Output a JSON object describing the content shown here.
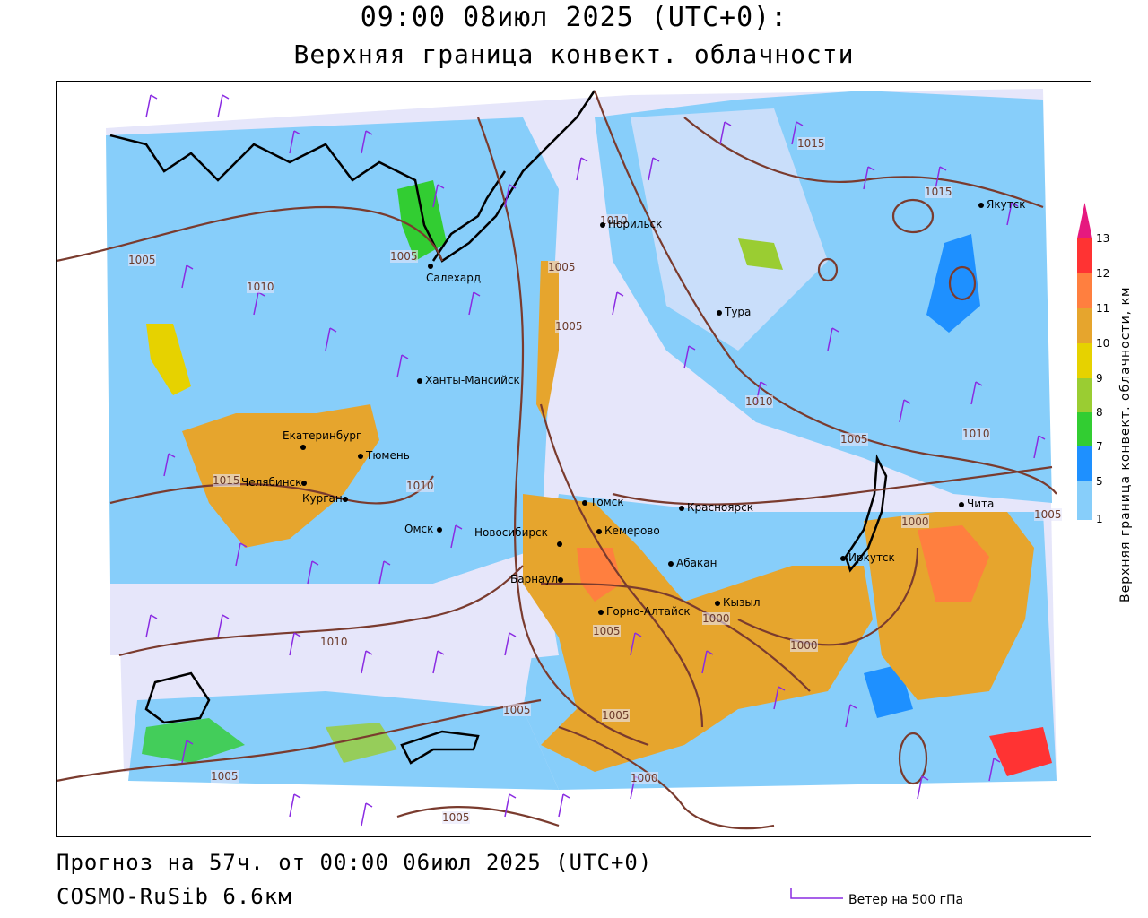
{
  "header": {
    "time": "09:00 08июл 2025 (UTC+0):",
    "title": "Верхняя граница конвект. облачности"
  },
  "footer": {
    "forecast": "Прогноз на 57ч. от 00:00 06июл 2025 (UTC+0)",
    "model": "COSMO-RuSib 6.6км",
    "wind_label": "Ветер на 500 гПа"
  },
  "legend": {
    "unit": "Верхняя граница конвект. облачности, км",
    "ticks": [
      "1",
      "5",
      "7",
      "8",
      "9",
      "10",
      "11",
      "12",
      "13"
    ],
    "colors": [
      "#e6e6fa",
      "#87cefa",
      "#1e90ff",
      "#32cd32",
      "#9acd32",
      "#e6d200",
      "#e6a52d",
      "#ff7f3f",
      "#ff3333",
      "#e6197f"
    ]
  },
  "cities": [
    {
      "name": "Салехард"
    },
    {
      "name": "Норильск"
    },
    {
      "name": "Тура"
    },
    {
      "name": "Якутск"
    },
    {
      "name": "Ханты-Мансийск"
    },
    {
      "name": "Екатеринбург"
    },
    {
      "name": "Тюмень"
    },
    {
      "name": "Челябинск"
    },
    {
      "name": "Курган"
    },
    {
      "name": "Омск"
    },
    {
      "name": "Томск"
    },
    {
      "name": "Новосибирск"
    },
    {
      "name": "Кемерово"
    },
    {
      "name": "Красноярск"
    },
    {
      "name": "Абакан"
    },
    {
      "name": "Барнаул"
    },
    {
      "name": "Горно-Алтайск"
    },
    {
      "name": "Кызыл"
    },
    {
      "name": "Иркутск"
    },
    {
      "name": "Чита"
    }
  ],
  "isobars": [
    "1005",
    "1010",
    "1015",
    "1015",
    "1005",
    "1010",
    "1005",
    "1010",
    "1005",
    "1010",
    "1015",
    "1010",
    "1010",
    "1005",
    "1005",
    "1000",
    "1005",
    "1000",
    "1000",
    "1005",
    "1005",
    "1000",
    "1005",
    "1005"
  ],
  "colors": {
    "isobar": "#7a3b2e",
    "wind": "#8a2be2",
    "coast": "#000000",
    "border": "#555555"
  }
}
